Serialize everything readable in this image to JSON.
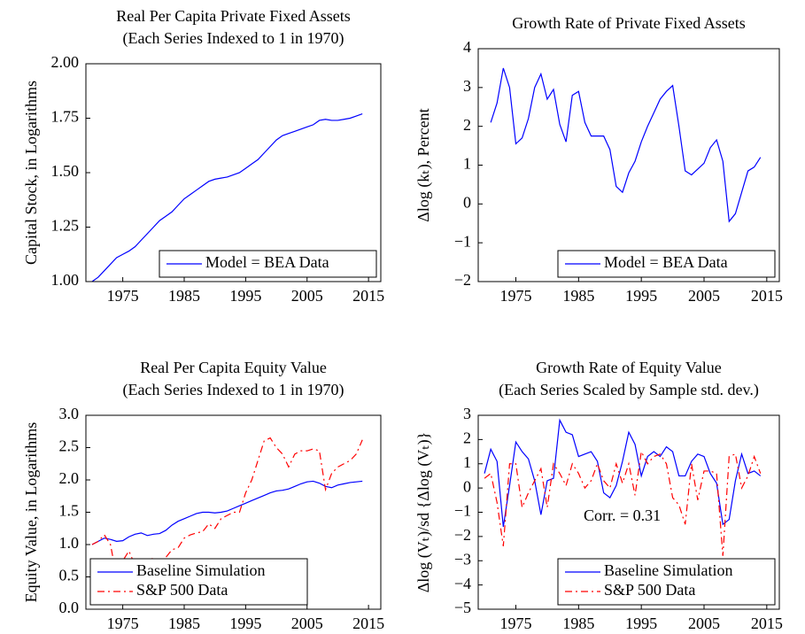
{
  "chart_data": [
    {
      "type": "line",
      "title": "Real Per Capita Private Fixed Assets",
      "subtitle": "(Each Series Indexed to 1 in 1970)",
      "y_label": "Capital Stock, in Logarithms",
      "x": [
        1970,
        1971,
        1972,
        1973,
        1974,
        1975,
        1976,
        1977,
        1978,
        1979,
        1980,
        1981,
        1982,
        1983,
        1984,
        1985,
        1986,
        1987,
        1988,
        1989,
        1990,
        1991,
        1992,
        1993,
        1994,
        1995,
        1996,
        1997,
        1998,
        1999,
        2000,
        2001,
        2002,
        2003,
        2004,
        2005,
        2006,
        2007,
        2008,
        2009,
        2010,
        2011,
        2012,
        2013,
        2014
      ],
      "series": [
        {
          "name": "Model = BEA Data",
          "color": "#0000ff",
          "style": "solid",
          "values": [
            1.0,
            1.02,
            1.05,
            1.08,
            1.11,
            1.125,
            1.14,
            1.16,
            1.19,
            1.22,
            1.25,
            1.28,
            1.3,
            1.32,
            1.35,
            1.38,
            1.4,
            1.42,
            1.44,
            1.46,
            1.47,
            1.475,
            1.48,
            1.49,
            1.5,
            1.52,
            1.54,
            1.56,
            1.59,
            1.62,
            1.65,
            1.67,
            1.68,
            1.69,
            1.7,
            1.71,
            1.72,
            1.74,
            1.745,
            1.74,
            1.74,
            1.745,
            1.75,
            1.76,
            1.77
          ]
        }
      ],
      "xlim": [
        1969,
        2017
      ],
      "xticks": [
        1975,
        1985,
        1995,
        2005,
        2015
      ],
      "ylim": [
        1,
        2
      ],
      "yticks": [
        {
          "value": 1,
          "label": "1.00"
        },
        1.25,
        {
          "value": 1.5,
          "label": "1.50"
        },
        1.75,
        {
          "value": 2,
          "label": "2.00"
        }
      ],
      "legend": "lower right"
    },
    {
      "type": "line",
      "title": "Growth Rate of Private Fixed Assets",
      "y_label": "Δlog (kₜ), Percent",
      "x": [
        1971,
        1972,
        1973,
        1974,
        1975,
        1976,
        1977,
        1978,
        1979,
        1980,
        1981,
        1982,
        1983,
        1984,
        1985,
        1986,
        1987,
        1988,
        1989,
        1990,
        1991,
        1992,
        1993,
        1994,
        1995,
        1996,
        1997,
        1998,
        1999,
        2000,
        2001,
        2002,
        2003,
        2004,
        2005,
        2006,
        2007,
        2008,
        2009,
        2010,
        2011,
        2012,
        2013,
        2014
      ],
      "series": [
        {
          "name": "Model = BEA Data",
          "color": "#0000ff",
          "style": "solid",
          "values": [
            2.1,
            2.6,
            3.5,
            3.0,
            1.55,
            1.7,
            2.2,
            3.0,
            3.35,
            2.7,
            2.95,
            2.05,
            1.6,
            2.8,
            2.9,
            2.1,
            1.75,
            1.75,
            1.75,
            1.4,
            0.45,
            0.3,
            0.8,
            1.1,
            1.6,
            2.0,
            2.35,
            2.7,
            2.9,
            3.05,
            2.0,
            0.85,
            0.75,
            0.9,
            1.05,
            1.45,
            1.65,
            1.1,
            -0.45,
            -0.25,
            0.3,
            0.85,
            0.95,
            1.2
          ]
        }
      ],
      "xlim": [
        1969,
        2017
      ],
      "xticks": [
        1975,
        1985,
        1995,
        2005,
        2015
      ],
      "ylim": [
        -2,
        4
      ],
      "yticks": [
        {
          "value": -2,
          "label": "−2"
        },
        {
          "value": -1,
          "label": "−1"
        },
        0,
        1,
        2,
        3,
        4
      ],
      "legend": "lower right"
    },
    {
      "type": "line",
      "title": "Real Per Capita Equity Value",
      "subtitle": "(Each Series Indexed to 1 in 1970)",
      "y_label": "Equity Value, in Logarithms",
      "x": [
        1970,
        1971,
        1972,
        1973,
        1974,
        1975,
        1976,
        1977,
        1978,
        1979,
        1980,
        1981,
        1982,
        1983,
        1984,
        1985,
        1986,
        1987,
        1988,
        1989,
        1990,
        1991,
        1992,
        1993,
        1994,
        1995,
        1996,
        1997,
        1998,
        1999,
        2000,
        2001,
        2002,
        2003,
        2004,
        2005,
        2006,
        2007,
        2008,
        2009,
        2010,
        2011,
        2012,
        2013,
        2014
      ],
      "series": [
        {
          "name": "Baseline Simulation",
          "color": "#0000ff",
          "style": "solid",
          "values": [
            1.0,
            1.05,
            1.1,
            1.08,
            1.05,
            1.06,
            1.12,
            1.16,
            1.18,
            1.14,
            1.16,
            1.17,
            1.22,
            1.3,
            1.36,
            1.4,
            1.44,
            1.48,
            1.5,
            1.5,
            1.49,
            1.5,
            1.52,
            1.56,
            1.6,
            1.64,
            1.68,
            1.72,
            1.76,
            1.8,
            1.83,
            1.84,
            1.86,
            1.9,
            1.94,
            1.97,
            1.98,
            1.95,
            1.9,
            1.88,
            1.92,
            1.94,
            1.96,
            1.97,
            1.98
          ]
        },
        {
          "name": "S&P 500 Data",
          "color": "#ff0000",
          "style": "dash-dot",
          "values": [
            1.0,
            1.05,
            1.15,
            1.0,
            0.5,
            0.75,
            0.9,
            0.68,
            0.7,
            0.72,
            0.8,
            0.7,
            0.8,
            0.92,
            0.95,
            1.1,
            1.15,
            1.18,
            1.2,
            1.32,
            1.25,
            1.4,
            1.45,
            1.5,
            1.5,
            1.8,
            2.0,
            2.3,
            2.6,
            2.65,
            2.5,
            2.4,
            2.2,
            2.4,
            2.45,
            2.45,
            2.48,
            2.45,
            1.85,
            2.1,
            2.2,
            2.25,
            2.3,
            2.4,
            2.62
          ]
        }
      ],
      "xlim": [
        1969,
        2017
      ],
      "xticks": [
        1975,
        1985,
        1995,
        2005,
        2015
      ],
      "ylim": [
        0,
        3
      ],
      "yticks": [
        {
          "value": 0,
          "label": "0.0"
        },
        0.5,
        {
          "value": 1,
          "label": "1.0"
        },
        1.5,
        {
          "value": 2,
          "label": "2.0"
        },
        2.5,
        {
          "value": 3,
          "label": "3.0"
        }
      ],
      "legend": "lower left"
    },
    {
      "type": "line",
      "title": "Growth Rate of Equity Value",
      "subtitle": "(Each Series Scaled by Sample std. dev.)",
      "y_label": "Δlog (Vₜ)/sd {Δlog (Vₜ)}",
      "annotation": "Corr. = 0.31",
      "x": [
        1970,
        1971,
        1972,
        1973,
        1974,
        1975,
        1976,
        1977,
        1978,
        1979,
        1980,
        1981,
        1982,
        1983,
        1984,
        1985,
        1986,
        1987,
        1988,
        1989,
        1990,
        1991,
        1992,
        1993,
        1994,
        1995,
        1996,
        1997,
        1998,
        1999,
        2000,
        2001,
        2002,
        2003,
        2004,
        2005,
        2006,
        2007,
        2008,
        2009,
        2010,
        2011,
        2012,
        2013,
        2014
      ],
      "series": [
        {
          "name": "Baseline Simulation",
          "color": "#0000ff",
          "style": "solid",
          "values": [
            0.6,
            1.6,
            1.1,
            -1.6,
            0.1,
            1.9,
            1.5,
            1.2,
            0.3,
            -1.1,
            0.3,
            0.4,
            2.8,
            2.3,
            2.2,
            1.3,
            1.4,
            1.5,
            1.1,
            -0.2,
            -0.4,
            0.1,
            1.1,
            2.3,
            1.8,
            0.5,
            1.3,
            1.5,
            1.3,
            1.7,
            1.5,
            0.5,
            0.5,
            1.1,
            1.4,
            1.3,
            0.6,
            0.2,
            -1.5,
            -1.3,
            0.3,
            1.4,
            0.6,
            0.7,
            0.5
          ]
        },
        {
          "name": "S&P 500 Data",
          "color": "#ff0000",
          "style": "dash-dot",
          "values": [
            0.4,
            0.6,
            -0.6,
            -2.4,
            1.0,
            1.0,
            -0.8,
            -0.2,
            0.3,
            0.8,
            -0.8,
            1.0,
            0.6,
            0.1,
            1.0,
            0.6,
            0.0,
            0.3,
            1.0,
            0.3,
            0.0,
            1.0,
            0.2,
            1.0,
            -0.3,
            1.5,
            1.0,
            1.3,
            1.4,
            1.0,
            -0.4,
            -0.7,
            -1.5,
            1.0,
            -0.5,
            0.7,
            0.7,
            0.6,
            -2.8,
            1.3,
            1.4,
            0.0,
            0.5,
            1.3,
            0.6
          ]
        }
      ],
      "xlim": [
        1969,
        2017
      ],
      "xticks": [
        1975,
        1985,
        1995,
        2005,
        2015
      ],
      "ylim": [
        -5,
        3
      ],
      "yticks": [
        {
          "value": -5,
          "label": "−5"
        },
        {
          "value": -4,
          "label": "−4"
        },
        {
          "value": -3,
          "label": "−3"
        },
        {
          "value": -2,
          "label": "−2"
        },
        {
          "value": -1,
          "label": "−1"
        },
        0,
        1,
        2,
        3
      ],
      "legend": "lower right"
    }
  ]
}
